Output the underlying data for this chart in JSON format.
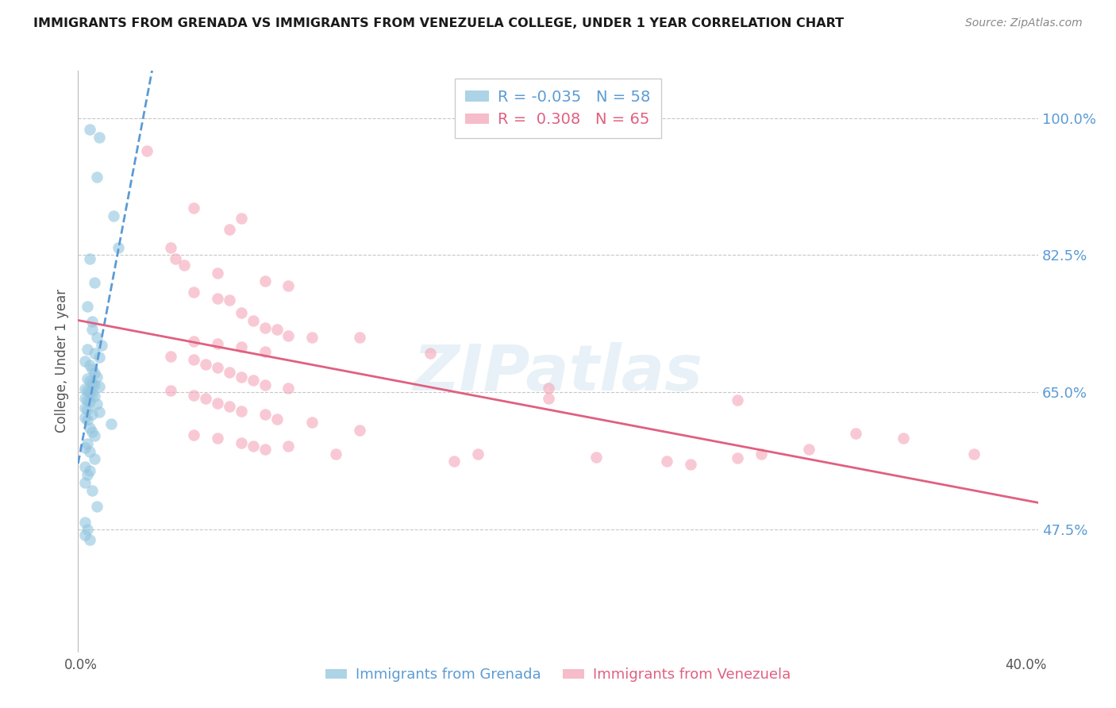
{
  "title": "IMMIGRANTS FROM GRENADA VS IMMIGRANTS FROM VENEZUELA COLLEGE, UNDER 1 YEAR CORRELATION CHART",
  "source": "Source: ZipAtlas.com",
  "ylabel": "College, Under 1 year",
  "ytick_labels": [
    "100.0%",
    "82.5%",
    "65.0%",
    "47.5%"
  ],
  "ytick_values": [
    1.0,
    0.825,
    0.65,
    0.475
  ],
  "ymin": 0.32,
  "ymax": 1.06,
  "xmin": -0.001,
  "xmax": 0.405,
  "xtick_left": "0.0%",
  "xtick_right": "40.0%",
  "legend_grenada_R": "-0.035",
  "legend_grenada_N": "58",
  "legend_venezuela_R": "0.308",
  "legend_venezuela_N": "65",
  "blue_color": "#92c5de",
  "pink_color": "#f4a6b8",
  "blue_line_color": "#5b9bd5",
  "pink_line_color": "#e06080",
  "watermark": "ZIPatlas",
  "background_color": "#ffffff",
  "grenada_scatter": [
    [
      0.004,
      0.985
    ],
    [
      0.008,
      0.975
    ],
    [
      0.007,
      0.925
    ],
    [
      0.014,
      0.875
    ],
    [
      0.016,
      0.835
    ],
    [
      0.004,
      0.82
    ],
    [
      0.006,
      0.79
    ],
    [
      0.003,
      0.76
    ],
    [
      0.005,
      0.74
    ],
    [
      0.005,
      0.73
    ],
    [
      0.007,
      0.72
    ],
    [
      0.009,
      0.71
    ],
    [
      0.003,
      0.705
    ],
    [
      0.006,
      0.7
    ],
    [
      0.008,
      0.695
    ],
    [
      0.002,
      0.69
    ],
    [
      0.004,
      0.685
    ],
    [
      0.005,
      0.68
    ],
    [
      0.006,
      0.675
    ],
    [
      0.007,
      0.67
    ],
    [
      0.003,
      0.668
    ],
    [
      0.004,
      0.665
    ],
    [
      0.005,
      0.662
    ],
    [
      0.006,
      0.66
    ],
    [
      0.008,
      0.658
    ],
    [
      0.002,
      0.655
    ],
    [
      0.003,
      0.652
    ],
    [
      0.004,
      0.65
    ],
    [
      0.005,
      0.648
    ],
    [
      0.006,
      0.645
    ],
    [
      0.002,
      0.642
    ],
    [
      0.003,
      0.64
    ],
    [
      0.004,
      0.638
    ],
    [
      0.007,
      0.635
    ],
    [
      0.002,
      0.63
    ],
    [
      0.003,
      0.628
    ],
    [
      0.008,
      0.625
    ],
    [
      0.005,
      0.622
    ],
    [
      0.002,
      0.618
    ],
    [
      0.003,
      0.615
    ],
    [
      0.013,
      0.61
    ],
    [
      0.004,
      0.605
    ],
    [
      0.005,
      0.6
    ],
    [
      0.006,
      0.595
    ],
    [
      0.003,
      0.585
    ],
    [
      0.002,
      0.58
    ],
    [
      0.004,
      0.575
    ],
    [
      0.006,
      0.565
    ],
    [
      0.002,
      0.555
    ],
    [
      0.004,
      0.55
    ],
    [
      0.003,
      0.545
    ],
    [
      0.002,
      0.535
    ],
    [
      0.005,
      0.525
    ],
    [
      0.007,
      0.505
    ],
    [
      0.002,
      0.485
    ],
    [
      0.003,
      0.475
    ],
    [
      0.002,
      0.468
    ],
    [
      0.004,
      0.462
    ]
  ],
  "venezuela_scatter": [
    [
      0.028,
      0.958
    ],
    [
      0.048,
      0.885
    ],
    [
      0.068,
      0.872
    ],
    [
      0.063,
      0.858
    ],
    [
      0.038,
      0.835
    ],
    [
      0.04,
      0.82
    ],
    [
      0.044,
      0.812
    ],
    [
      0.058,
      0.802
    ],
    [
      0.078,
      0.792
    ],
    [
      0.088,
      0.786
    ],
    [
      0.048,
      0.778
    ],
    [
      0.058,
      0.77
    ],
    [
      0.063,
      0.768
    ],
    [
      0.068,
      0.752
    ],
    [
      0.073,
      0.742
    ],
    [
      0.078,
      0.732
    ],
    [
      0.083,
      0.73
    ],
    [
      0.088,
      0.722
    ],
    [
      0.098,
      0.72
    ],
    [
      0.118,
      0.72
    ],
    [
      0.048,
      0.715
    ],
    [
      0.058,
      0.712
    ],
    [
      0.068,
      0.708
    ],
    [
      0.078,
      0.702
    ],
    [
      0.148,
      0.7
    ],
    [
      0.038,
      0.696
    ],
    [
      0.048,
      0.692
    ],
    [
      0.053,
      0.686
    ],
    [
      0.058,
      0.682
    ],
    [
      0.063,
      0.676
    ],
    [
      0.068,
      0.67
    ],
    [
      0.073,
      0.666
    ],
    [
      0.078,
      0.66
    ],
    [
      0.088,
      0.656
    ],
    [
      0.198,
      0.656
    ],
    [
      0.038,
      0.652
    ],
    [
      0.048,
      0.646
    ],
    [
      0.053,
      0.642
    ],
    [
      0.058,
      0.636
    ],
    [
      0.063,
      0.632
    ],
    [
      0.068,
      0.626
    ],
    [
      0.078,
      0.622
    ],
    [
      0.083,
      0.616
    ],
    [
      0.098,
      0.612
    ],
    [
      0.118,
      0.602
    ],
    [
      0.048,
      0.596
    ],
    [
      0.058,
      0.592
    ],
    [
      0.068,
      0.586
    ],
    [
      0.073,
      0.582
    ],
    [
      0.078,
      0.578
    ],
    [
      0.168,
      0.572
    ],
    [
      0.218,
      0.568
    ],
    [
      0.248,
      0.562
    ],
    [
      0.258,
      0.558
    ],
    [
      0.278,
      0.566
    ],
    [
      0.288,
      0.572
    ],
    [
      0.308,
      0.578
    ],
    [
      0.328,
      0.598
    ],
    [
      0.348,
      0.592
    ],
    [
      0.378,
      0.572
    ],
    [
      0.088,
      0.582
    ],
    [
      0.108,
      0.572
    ],
    [
      0.158,
      0.562
    ],
    [
      0.198,
      0.642
    ],
    [
      0.278,
      0.64
    ]
  ]
}
